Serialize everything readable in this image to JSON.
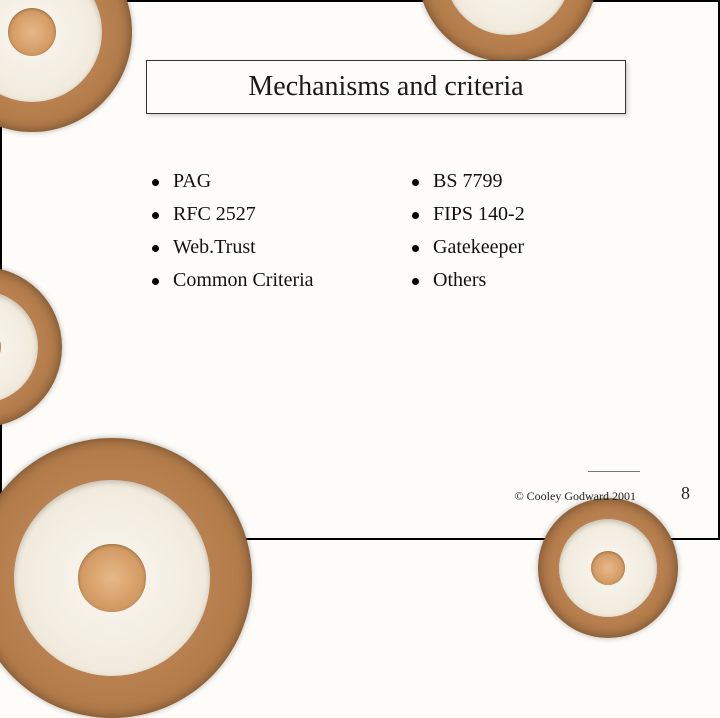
{
  "title": "Mechanisms and criteria",
  "columns": {
    "left": [
      {
        "label": "PAG"
      },
      {
        "label": "RFC 2527"
      },
      {
        "label": "Web.Trust"
      },
      {
        "label": "Common Criteria"
      }
    ],
    "right": [
      {
        "label": "BS 7799"
      },
      {
        "label": "FIPS 140-2"
      },
      {
        "label": "Gatekeeper"
      },
      {
        "label": "Others"
      }
    ]
  },
  "footer": {
    "copyright": "© Cooley Godward 2001",
    "page": "8"
  },
  "style": {
    "background_color": "#fdfcf8",
    "title_fontsize": 28,
    "body_fontsize": 20,
    "bullet_color": "#000000",
    "text_color": "#111111",
    "seal_outer_color": "#b8814f",
    "seal_inner_color": "#f2ece0",
    "font_family": "Georgia, Times New Roman, serif"
  }
}
